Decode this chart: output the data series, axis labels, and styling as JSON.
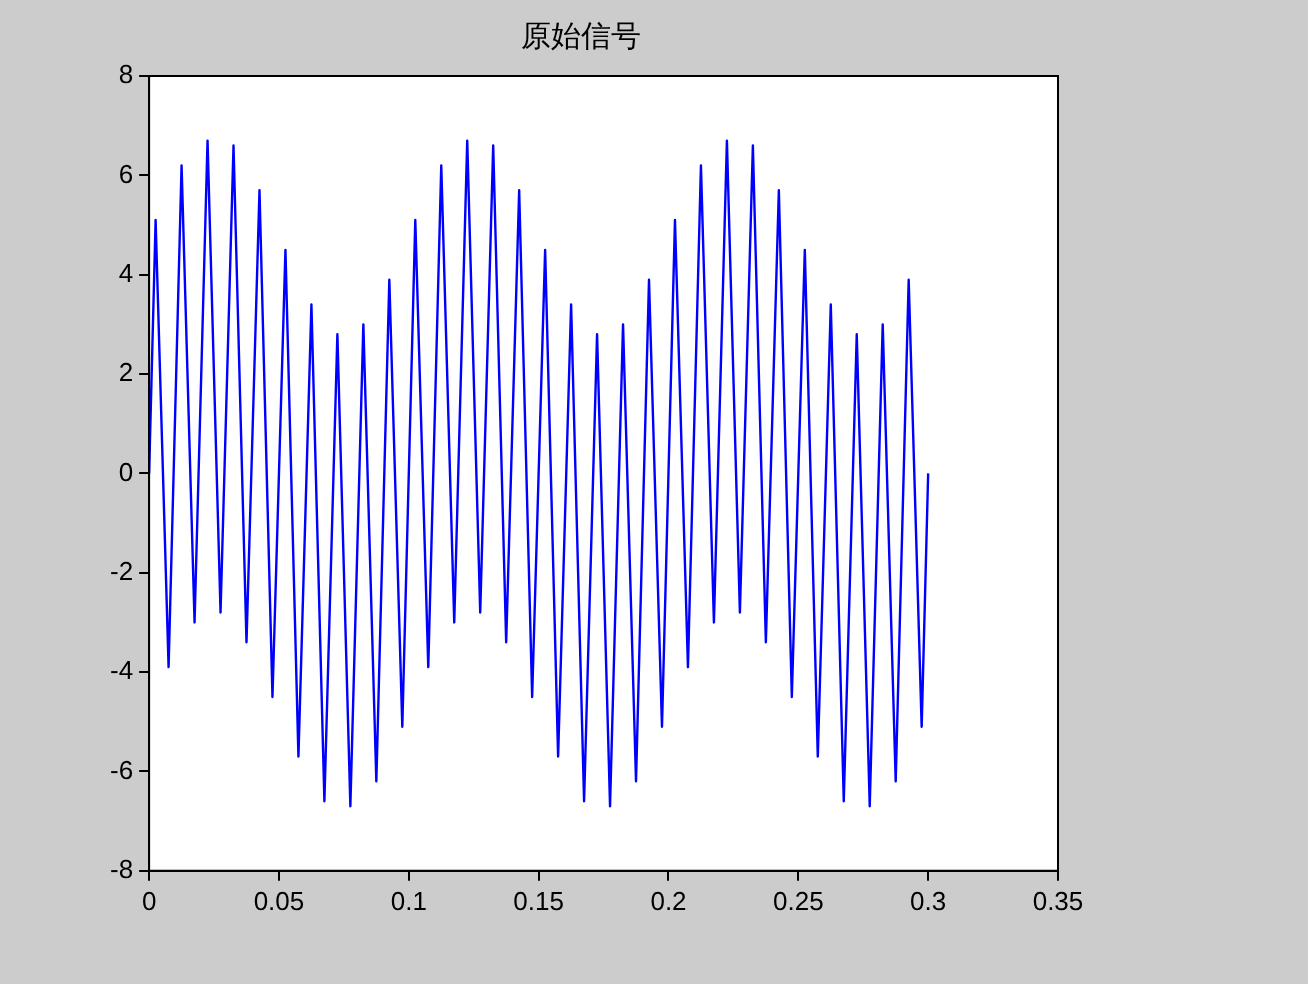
{
  "chart_data": {
    "type": "line",
    "title": "原始信号",
    "x": [
      0,
      0.0025,
      0.0075,
      0.0125,
      0.0175,
      0.0225,
      0.0275,
      0.0325,
      0.0375,
      0.0425,
      0.0475,
      0.0525,
      0.0575,
      0.0625,
      0.0675,
      0.0725,
      0.0775,
      0.0825,
      0.0875,
      0.0925,
      0.0975,
      0.1025,
      0.1075,
      0.1125,
      0.1175,
      0.1225,
      0.1275,
      0.1325,
      0.1375,
      0.1425,
      0.1475,
      0.1525,
      0.1575,
      0.1625,
      0.1675,
      0.1725,
      0.1775,
      0.1825,
      0.1875,
      0.1925,
      0.1975,
      0.2025,
      0.2075,
      0.2125,
      0.2175,
      0.2225,
      0.2275,
      0.2325,
      0.2375,
      0.2425,
      0.2475,
      0.2525,
      0.2575,
      0.2625,
      0.2675,
      0.2725,
      0.2775,
      0.2825,
      0.2875,
      0.2925,
      0.2975,
      0.3
    ],
    "series": [
      {
        "color": "#0000ff",
        "values": [
          0,
          5.1,
          -3.9,
          6.2,
          -3.0,
          6.7,
          -2.8,
          6.6,
          -3.4,
          5.7,
          -4.5,
          4.5,
          -5.7,
          3.4,
          -6.6,
          2.8,
          -6.7,
          3.0,
          -6.2,
          3.9,
          -5.1,
          5.1,
          -3.9,
          6.2,
          -3.0,
          6.7,
          -2.8,
          6.6,
          -3.4,
          5.7,
          -4.5,
          4.5,
          -5.7,
          3.4,
          -6.6,
          2.8,
          -6.7,
          3.0,
          -6.2,
          3.9,
          -5.1,
          5.1,
          -3.9,
          6.2,
          -3.0,
          6.7,
          -2.8,
          6.6,
          -3.4,
          5.7,
          -4.5,
          4.5,
          -5.7,
          3.4,
          -6.6,
          2.8,
          -6.7,
          3.0,
          -6.2,
          3.9,
          -5.1,
          0
        ]
      }
    ],
    "xlim": [
      0,
      0.35
    ],
    "xticks": [
      0,
      0.05,
      0.1,
      0.15,
      0.2,
      0.25,
      0.3,
      0.35
    ],
    "ylim": [
      -8,
      8
    ],
    "yticks": [
      -8,
      -6,
      -4,
      -2,
      0,
      2,
      4,
      6,
      8
    ],
    "grid": false,
    "legend": false
  }
}
